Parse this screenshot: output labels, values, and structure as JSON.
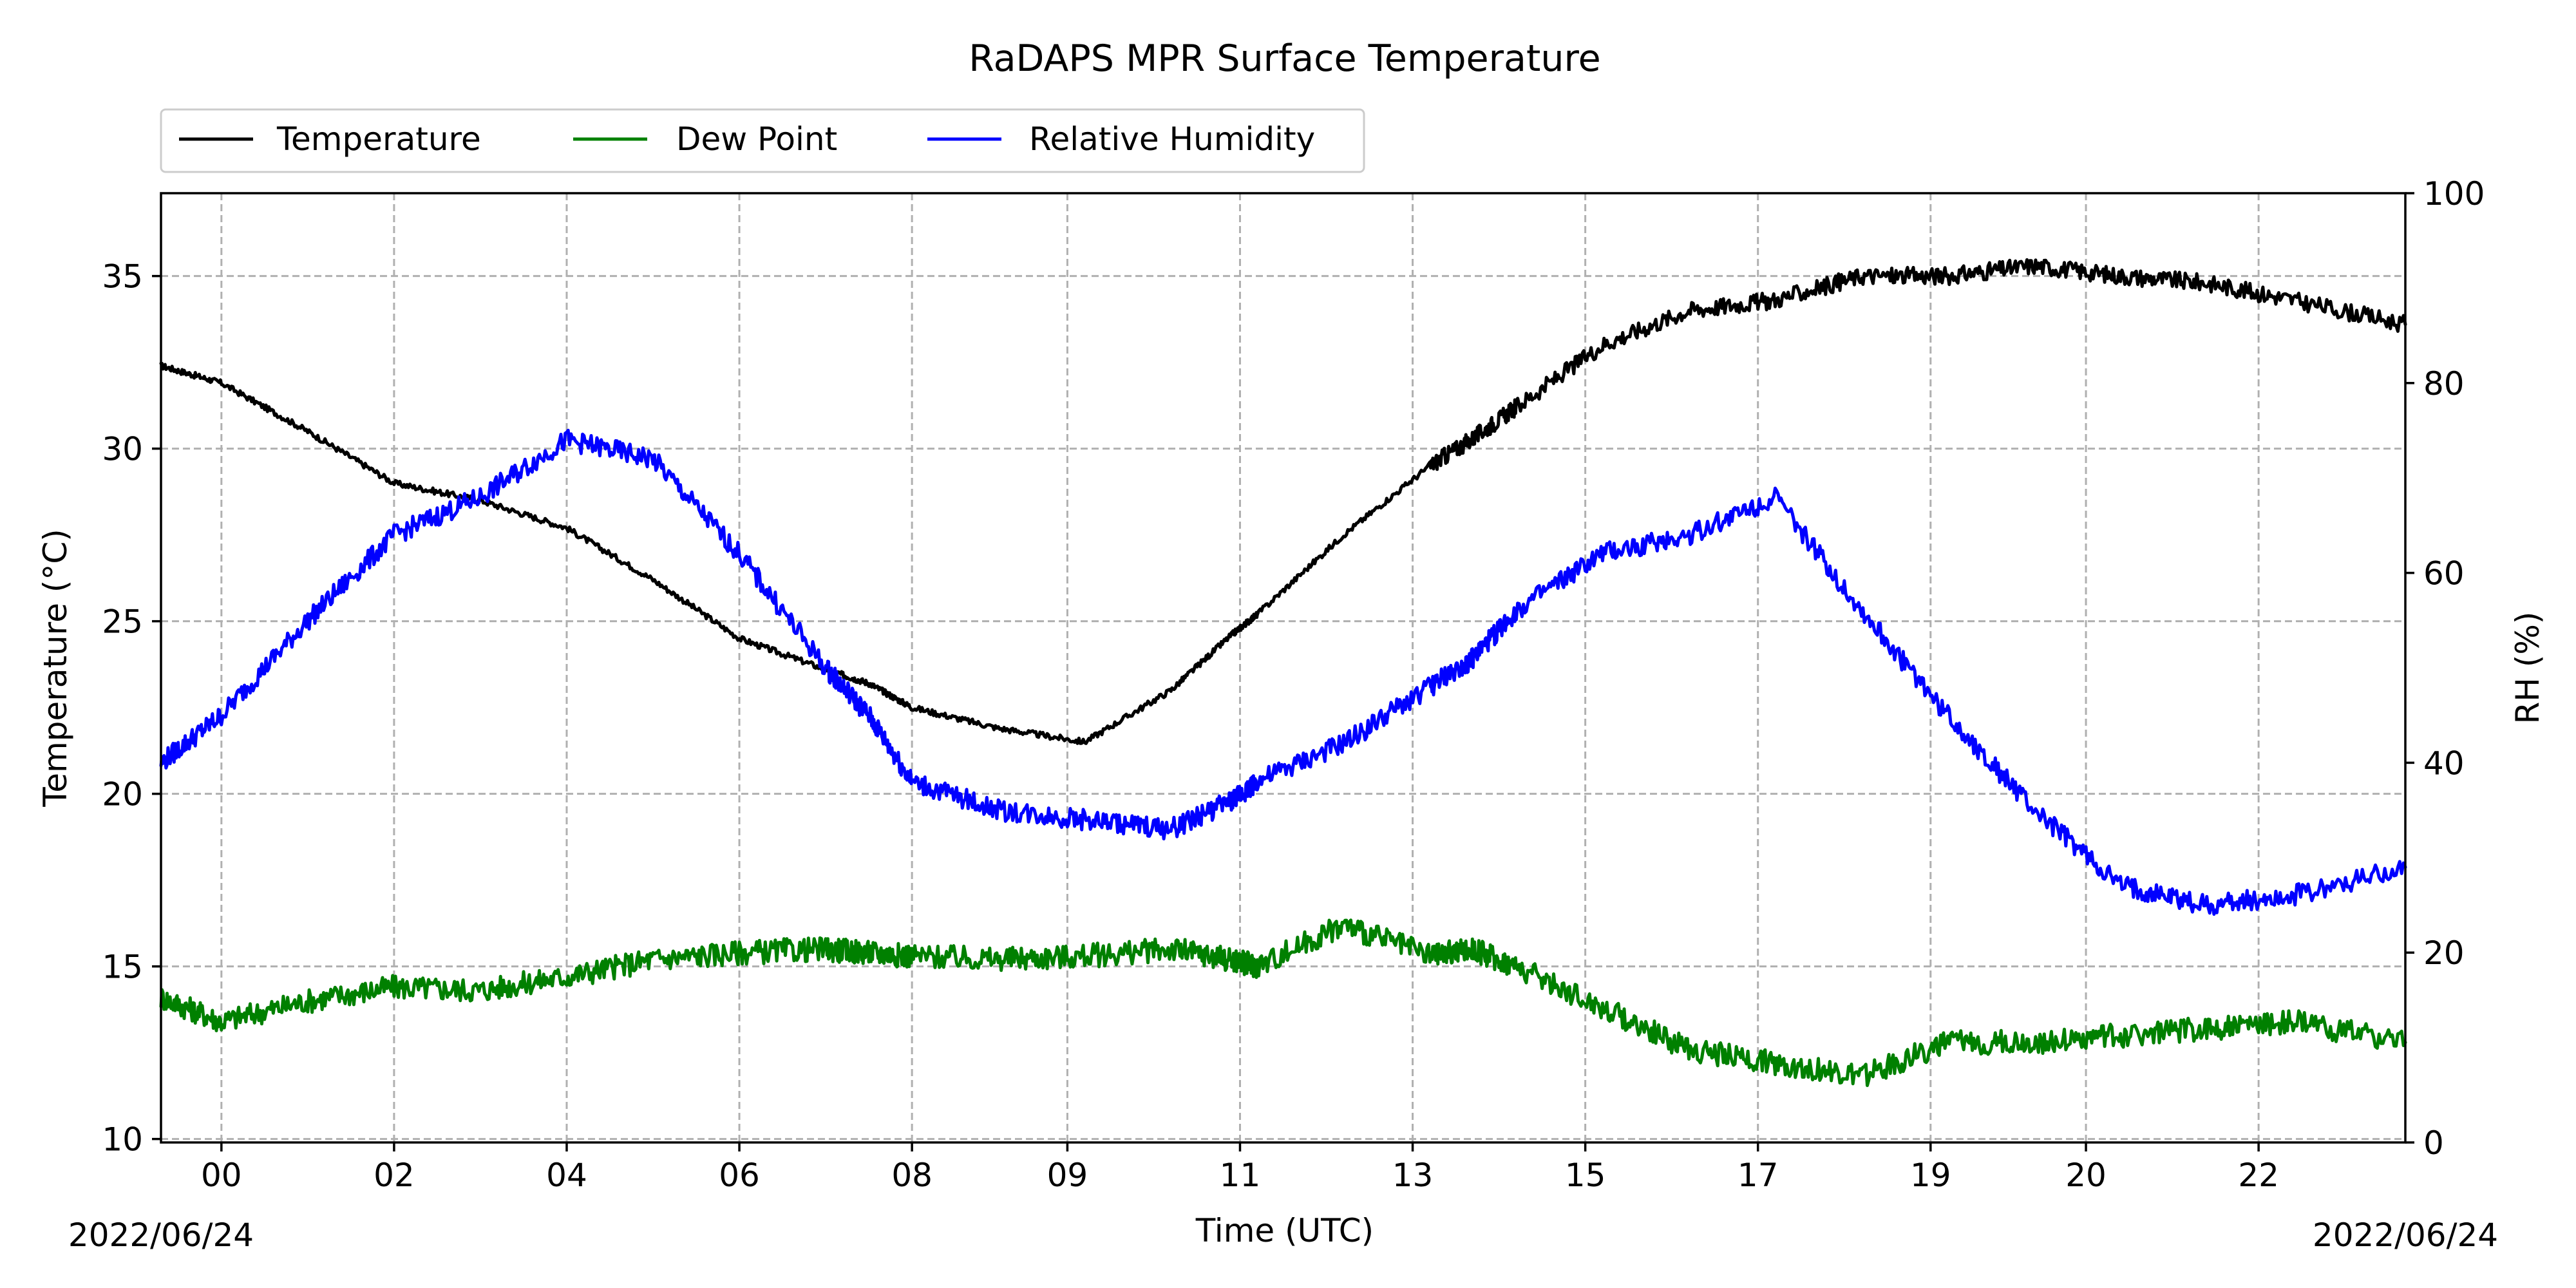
{
  "chart_data": {
    "type": "line",
    "title": "RaDAPS MPR Surface Temperature",
    "xlabel": "Time (UTC)",
    "ylabel_left": "Temperature (°C)",
    "ylabel_right": "RH (%)",
    "date_left": "2022/06/24",
    "date_right": "2022/06/24",
    "x_ticks": [
      "00",
      "02",
      "04",
      "06",
      "08",
      "09",
      "11",
      "13",
      "15",
      "17",
      "19",
      "20",
      "22"
    ],
    "xlim_hours": [
      23.3,
      49.3
    ],
    "ylim_left": [
      9.9,
      37.4
    ],
    "yticks_left": [
      10,
      15,
      20,
      25,
      30,
      35
    ],
    "ylim_right": [
      0,
      100
    ],
    "yticks_right": [
      0,
      20,
      40,
      60,
      80,
      100
    ],
    "grid": true,
    "legend_position": "top-left, above plot",
    "x_hours": [
      23.3,
      24.0,
      25.0,
      26.0,
      27.0,
      28.0,
      29.0,
      30.0,
      31.0,
      31.5,
      32.0,
      33.0,
      34.0,
      35.0,
      35.7,
      36.0,
      37.0,
      38.0,
      38.5,
      39.0,
      40.0,
      41.0,
      42.0,
      43.0,
      44.0,
      45.0,
      46.0,
      47.0,
      48.0,
      49.3
    ],
    "series": [
      {
        "name": "Temperature",
        "axis": "left",
        "color": "#000000",
        "values": [
          32.4,
          31.9,
          30.5,
          29.0,
          28.5,
          27.7,
          26.2,
          24.5,
          23.6,
          23.2,
          22.5,
          21.9,
          21.5,
          23.0,
          24.6,
          25.2,
          27.5,
          29.5,
          30.3,
          31.2,
          33.0,
          34.0,
          34.3,
          35.0,
          35.0,
          35.3,
          35.0,
          34.8,
          34.3,
          33.6
        ]
      },
      {
        "name": "Dew Point",
        "axis": "left",
        "color": "#008000",
        "values": [
          14.1,
          13.4,
          14.0,
          14.4,
          14.3,
          14.7,
          15.2,
          15.4,
          15.5,
          15.4,
          15.3,
          15.2,
          15.3,
          15.5,
          15.2,
          15.0,
          16.2,
          15.3,
          15.5,
          15.0,
          13.8,
          12.6,
          12.2,
          11.8,
          12.8,
          12.8,
          13.0,
          13.2,
          13.4,
          12.8
        ]
      },
      {
        "name": "Relative Humidity",
        "axis": "right",
        "color": "#0000ff",
        "values": [
          40,
          45,
          55,
          64,
          68,
          74,
          72,
          62,
          50,
          45,
          38,
          35,
          34,
          33,
          36,
          38,
          42,
          48,
          51,
          56,
          62,
          64,
          68,
          56,
          45,
          35,
          27,
          25,
          26,
          29
        ]
      }
    ]
  }
}
